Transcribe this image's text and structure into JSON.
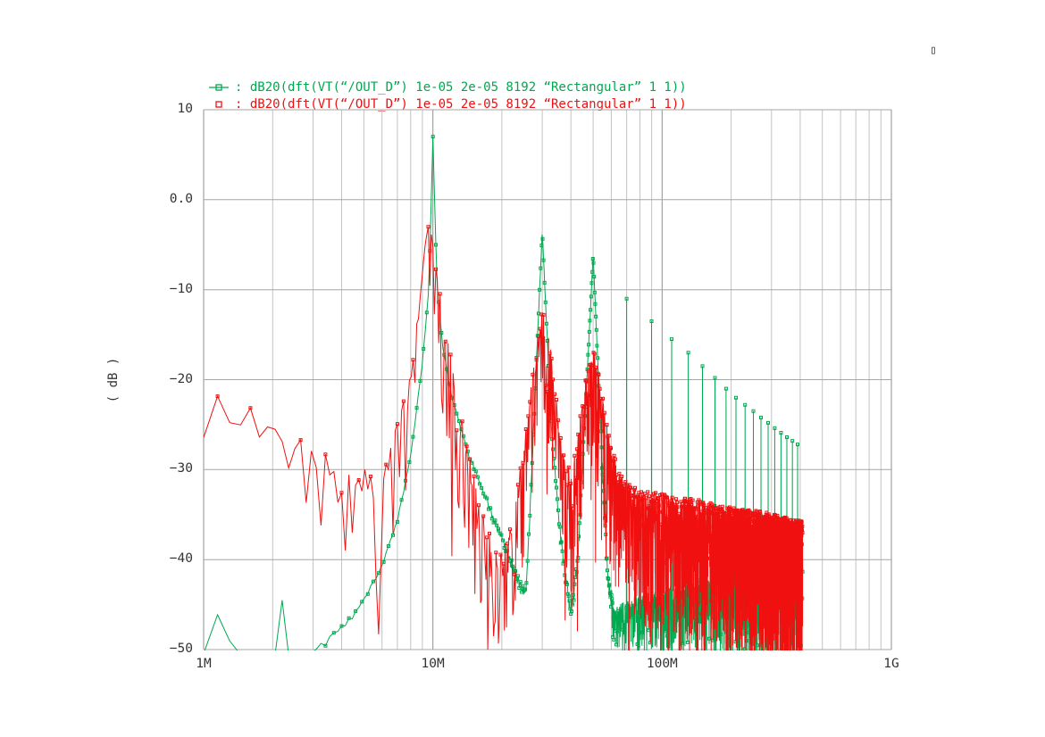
{
  "icons": {
    "corner_box": "▯",
    "legend_marker_green": "square-with-line",
    "legend_marker_red": "open-square"
  },
  "colors": {
    "grid_major": "#8f8f8f",
    "grid_mid": "#a6a6a6",
    "grid_minor": "#c3c3c3",
    "text": "#333333"
  },
  "chart_data": {
    "type": "line",
    "title": "",
    "xscale": "log",
    "xlim": [
      1000000,
      1000000000
    ],
    "ylim": [
      -50,
      10
    ],
    "grid": true,
    "legend_position": "top",
    "ylabel": "( dB )",
    "x_ticks": [
      {
        "value": 1000000,
        "label": "1M"
      },
      {
        "value": 10000000,
        "label": "10M"
      },
      {
        "value": 100000000,
        "label": "100M"
      },
      {
        "value": 1000000000,
        "label": "1G"
      }
    ],
    "y_ticks": [
      {
        "value": 10,
        "label": "10"
      },
      {
        "value": 0,
        "label": "0.0"
      },
      {
        "value": -10,
        "label": "−10"
      },
      {
        "value": -20,
        "label": "−20"
      },
      {
        "value": -30,
        "label": "−30"
      },
      {
        "value": -40,
        "label": "−40"
      },
      {
        "value": -50,
        "label": "−50"
      }
    ],
    "series": [
      {
        "id": "green",
        "color": "#00a84f",
        "marker": "square",
        "marker_mode": "dense",
        "legend_label": ": dB20(dft(VT(“/OUT_D”) 1e-05 2e-05 8192 “Rectangular” 1 1))",
        "freq_start_hz": 1000000,
        "freq_end_hz": 410000000,
        "bin_hz": 150000,
        "seed": 11,
        "deep_spike_prob": 0.05,
        "envelope": [
          [
            1000000,
            -50.4,
            0.4
          ],
          [
            1100000,
            -50.4,
            0.4
          ],
          [
            1200000,
            -42,
            0.1
          ],
          [
            1320000,
            -50.4,
            0.4
          ],
          [
            2050000,
            -50.6,
            0.4
          ],
          [
            2200000,
            -44.5,
            0.1
          ],
          [
            2350000,
            -50.6,
            0.4
          ],
          [
            3000000,
            -50,
            0.8
          ],
          [
            4000000,
            -47.5,
            0.8
          ],
          [
            5000000,
            -44.5,
            0.7
          ],
          [
            6000000,
            -40.5,
            0.5
          ],
          [
            7000000,
            -35.5,
            0.4
          ],
          [
            8000000,
            -28.5,
            0.3
          ],
          [
            9000000,
            -18,
            0.3
          ],
          [
            9600000,
            -10,
            0.2
          ],
          [
            10000000,
            7,
            0.15
          ],
          [
            10400000,
            -9,
            0.2
          ],
          [
            11000000,
            -16,
            0.3
          ],
          [
            12000000,
            -21.5,
            0.4
          ],
          [
            14000000,
            -27.5,
            0.5
          ],
          [
            17000000,
            -33,
            0.7
          ],
          [
            20000000,
            -37.5,
            0.9
          ],
          [
            23000000,
            -41.5,
            1
          ],
          [
            25500000,
            -43.5,
            1.2
          ],
          [
            27000000,
            -30,
            0.8
          ],
          [
            28500000,
            -16,
            0.4
          ],
          [
            30000000,
            -3.5,
            0.2
          ],
          [
            31500000,
            -15,
            0.5
          ],
          [
            33000000,
            -26,
            0.8
          ],
          [
            36000000,
            -37,
            1.2
          ],
          [
            40000000,
            -46,
            1.5
          ],
          [
            43000000,
            -39,
            1.5
          ],
          [
            46000000,
            -24,
            0.8
          ],
          [
            48500000,
            -13,
            0.4
          ],
          [
            50000000,
            -6,
            0.2
          ],
          [
            52000000,
            -16,
            0.6
          ],
          [
            55000000,
            -30,
            1.2
          ],
          [
            58000000,
            -42,
            2
          ],
          [
            62000000,
            -46,
            4
          ],
          [
            70000000,
            -45,
            6
          ],
          [
            100000000,
            -44,
            7
          ],
          [
            150000000,
            -43,
            8
          ],
          [
            250000000,
            -40,
            9
          ],
          [
            350000000,
            -37,
            10
          ],
          [
            410000000,
            -36,
            11
          ]
        ],
        "spikes": [
          [
            70000000,
            -11
          ],
          [
            90000000,
            -13.5
          ],
          [
            110000000,
            -15.5
          ],
          [
            130000000,
            -17
          ],
          [
            150000000,
            -18.5
          ],
          [
            170000000,
            -19.8
          ],
          [
            190000000,
            -21
          ],
          [
            210000000,
            -22
          ],
          [
            230000000,
            -22.8
          ],
          [
            250000000,
            -23.5
          ],
          [
            270000000,
            -24.2
          ],
          [
            290000000,
            -24.8
          ],
          [
            310000000,
            -25.4
          ],
          [
            330000000,
            -25.9
          ],
          [
            350000000,
            -26.4
          ],
          [
            370000000,
            -26.8
          ],
          [
            390000000,
            -27.2
          ]
        ]
      },
      {
        "id": "red",
        "color": "#f01010",
        "marker": "square",
        "marker_mode": "peaks",
        "legend_label": ": dB20(dft(VT(“/OUT_D”) 1e-05 2e-05 8192 “Rectangular” 1 1))",
        "freq_start_hz": 1000000,
        "freq_end_hz": 410000000,
        "bin_hz": 150000,
        "seed": 97,
        "deep_spike_prob": 0.08,
        "envelope": [
          [
            1000000,
            -26.5,
            3
          ],
          [
            1150000,
            -21.5,
            3
          ],
          [
            1350000,
            -25,
            4
          ],
          [
            1600000,
            -23,
            4
          ],
          [
            1850000,
            -26,
            5
          ],
          [
            2100000,
            -25,
            5
          ],
          [
            2400000,
            -28,
            6
          ],
          [
            2700000,
            -26.5,
            7
          ],
          [
            3000000,
            -29,
            9
          ],
          [
            3300000,
            -27.5,
            11
          ],
          [
            3700000,
            -31,
            14
          ],
          [
            4000000,
            -33,
            17
          ],
          [
            4400000,
            -30.5,
            17
          ],
          [
            4800000,
            -32,
            17
          ],
          [
            5200000,
            -29.5,
            17
          ],
          [
            5600000,
            -31,
            16
          ],
          [
            6000000,
            -29.5,
            15
          ],
          [
            6500000,
            -27,
            14
          ],
          [
            7000000,
            -25,
            12
          ],
          [
            7500000,
            -22.5,
            11
          ],
          [
            8000000,
            -19.5,
            10
          ],
          [
            8500000,
            -14,
            9
          ],
          [
            9000000,
            -8,
            7
          ],
          [
            9500000,
            -2.8,
            6
          ],
          [
            9900000,
            -4,
            7
          ],
          [
            10300000,
            -8,
            9
          ],
          [
            11000000,
            -13,
            11
          ],
          [
            12000000,
            -18,
            13
          ],
          [
            13000000,
            -23,
            15
          ],
          [
            14000000,
            -27,
            16
          ],
          [
            15000000,
            -31,
            16
          ],
          [
            16500000,
            -35,
            15
          ],
          [
            18000000,
            -38,
            13
          ],
          [
            20000000,
            -40,
            11
          ],
          [
            22000000,
            -37,
            12
          ],
          [
            24000000,
            -30,
            13
          ],
          [
            26000000,
            -24,
            13
          ],
          [
            28000000,
            -17.5,
            12
          ],
          [
            30000000,
            -12.5,
            12
          ],
          [
            32000000,
            -15.5,
            13
          ],
          [
            34000000,
            -21.5,
            15
          ],
          [
            36000000,
            -26.5,
            16
          ],
          [
            38000000,
            -29.5,
            16
          ],
          [
            40000000,
            -31,
            16
          ],
          [
            42000000,
            -28.5,
            15
          ],
          [
            44000000,
            -24.5,
            14
          ],
          [
            46000000,
            -21,
            13
          ],
          [
            48000000,
            -18.5,
            13
          ],
          [
            50000000,
            -17,
            13
          ],
          [
            53000000,
            -20,
            14
          ],
          [
            56000000,
            -24,
            15
          ],
          [
            60000000,
            -28,
            15
          ],
          [
            65000000,
            -30.5,
            15
          ],
          [
            70000000,
            -32,
            15
          ],
          [
            80000000,
            -33,
            15
          ],
          [
            100000000,
            -33.5,
            15
          ],
          [
            140000000,
            -34,
            15
          ],
          [
            200000000,
            -35,
            15
          ],
          [
            280000000,
            -35.5,
            15
          ],
          [
            410000000,
            -36.5,
            15
          ]
        ],
        "spikes": []
      }
    ]
  }
}
